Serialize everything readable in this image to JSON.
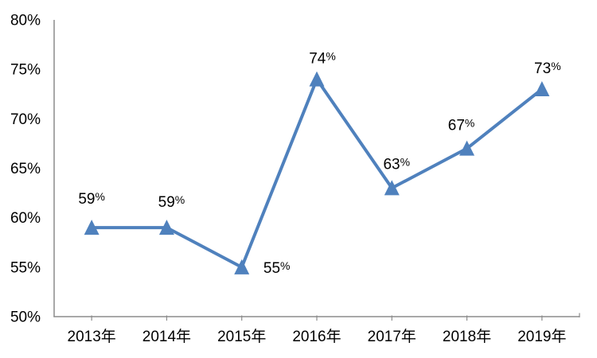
{
  "chart_data": {
    "type": "line",
    "title": "",
    "xlabel": "",
    "ylabel": "",
    "categories": [
      "2013年",
      "2014年",
      "2015年",
      "2016年",
      "2017年",
      "2018年",
      "2019年"
    ],
    "series": [
      {
        "name": "",
        "values": [
          59,
          59,
          55,
          74,
          63,
          67,
          73
        ],
        "data_labels": [
          "59%",
          "59%",
          "55%",
          "74%",
          "63%",
          "67%",
          "73%"
        ]
      }
    ],
    "ylim": [
      50,
      80
    ],
    "y_tick_values": [
      50,
      55,
      60,
      65,
      70,
      75,
      80
    ],
    "y_tick_labels": [
      "50%",
      "55%",
      "60%",
      "65%",
      "70%",
      "75%",
      "80%"
    ],
    "grid": false,
    "legend_position": "none",
    "marker_shape": "triangle-up",
    "colors": {
      "line": "#4F81BD",
      "marker": "#4F81BD",
      "axis": "#8C8C8C",
      "text": "#000000",
      "background": "#FFFFFF"
    }
  }
}
